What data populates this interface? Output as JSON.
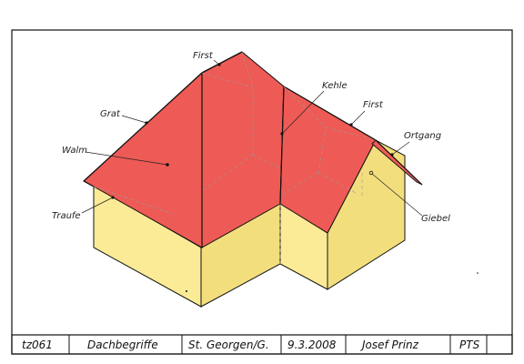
{
  "labels": {
    "first_left": "First",
    "kehle": "Kehle",
    "first_right": "First",
    "grat": "Grat",
    "walm": "Walm",
    "ortgang": "Ortgang",
    "traufe": "Traufe",
    "giebel": "Giebel"
  },
  "title_block": {
    "number": "tz061",
    "title": "Dachbegriffe",
    "place": "St. Georgen/G.",
    "date": "9.3.2008",
    "author": "Josef  Prinz",
    "school": "PTS",
    "empty": ""
  },
  "colors": {
    "roof": "#ee5a55",
    "wall": "#fbeb96",
    "wall_dark": "#f3de7e",
    "line": "#111111"
  }
}
